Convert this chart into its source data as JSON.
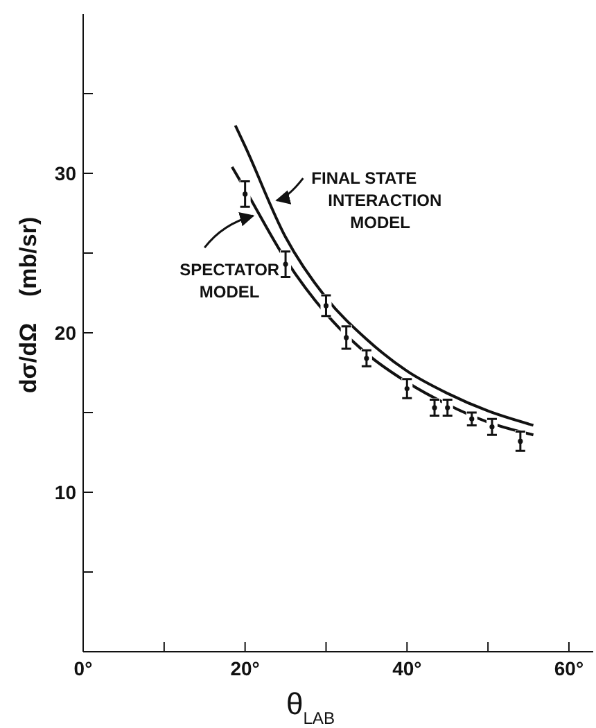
{
  "chart_data": {
    "type": "line",
    "xlabel": "θ$_{LAB}$",
    "ylabel": "dσ/dΩ    (mb/sr)",
    "xlim": [
      0,
      63
    ],
    "ylim": [
      0,
      40
    ],
    "xticks": [
      {
        "value": 0,
        "label": "0°"
      },
      {
        "value": 10,
        "label": null
      },
      {
        "value": 20,
        "label": "20°"
      },
      {
        "value": 30,
        "label": null
      },
      {
        "value": 40,
        "label": "40°"
      },
      {
        "value": 50,
        "label": null
      },
      {
        "value": 60,
        "label": "60°"
      }
    ],
    "yticks": [
      {
        "value": 5,
        "label": null
      },
      10,
      {
        "value": 15,
        "label": null
      },
      20,
      {
        "value": 25,
        "label": null
      },
      30,
      {
        "value": 35,
        "label": null
      }
    ],
    "grid": false,
    "line_style": "solid",
    "series": [
      {
        "color": "#111111",
        "marker": "none",
        "x": [
          18.8,
          20,
          25,
          30,
          35,
          40,
          45,
          50,
          55.6
        ],
        "values": [
          33.0,
          31.7,
          26.0,
          22.2,
          19.6,
          17.6,
          16.2,
          15.1,
          14.2
        ]
      },
      {
        "color": "#111111",
        "marker": "none",
        "x": [
          18.4,
          20,
          25,
          30,
          35,
          40,
          45,
          50,
          55.6
        ],
        "values": [
          30.4,
          29.0,
          24.6,
          21.2,
          18.7,
          16.9,
          15.5,
          14.4,
          13.6
        ]
      },
      {
        "type": "scatter",
        "color": "#111111",
        "x": [
          20,
          25,
          30,
          32.5,
          35,
          40,
          43.4,
          45,
          48,
          50.5,
          54
        ],
        "values": [
          28.7,
          24.3,
          21.7,
          19.7,
          18.4,
          16.5,
          15.3,
          15.3,
          14.6,
          14.1,
          13.2
        ],
        "errors": [
          0.8,
          0.8,
          0.65,
          0.7,
          0.5,
          0.6,
          0.5,
          0.5,
          0.4,
          0.5,
          0.6
        ]
      }
    ],
    "annotations": [
      {
        "text": "FINAL STATE INTERACTION MODEL",
        "x": 23.4,
        "y": 28.3
      },
      {
        "text": "SPECTATOR MODEL",
        "x": 21.5,
        "y": 27.6
      }
    ]
  }
}
